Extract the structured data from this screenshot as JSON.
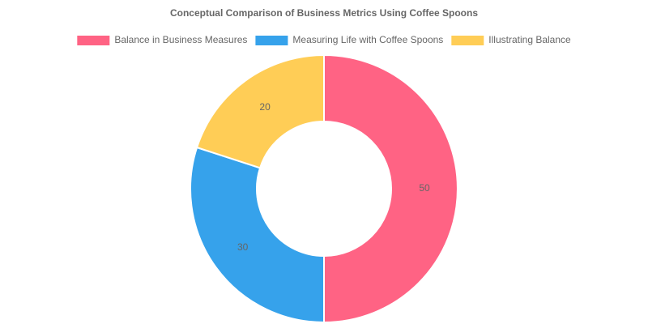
{
  "chart_data": {
    "type": "doughnut",
    "title": "Conceptual Comparison of Business Metrics Using Coffee Spoons",
    "categories": [
      "Balance in Business Measures",
      "Measuring Life with Coffee Spoons",
      "Illustrating Balance"
    ],
    "values": [
      50,
      30,
      20
    ],
    "colors": [
      "#ff6384",
      "#36a2eb",
      "#ffcd56"
    ],
    "legend": "top"
  }
}
